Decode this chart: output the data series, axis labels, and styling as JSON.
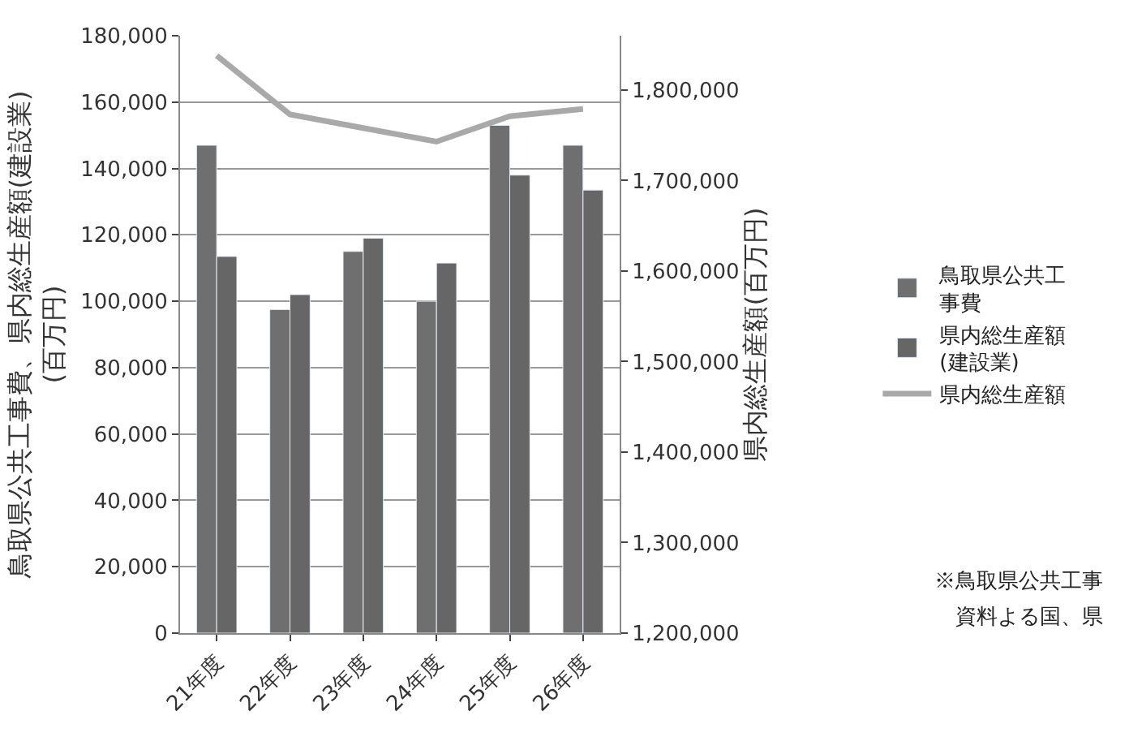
{
  "chart_data": {
    "type": "bar",
    "categories": [
      "21年度",
      "22年度",
      "23年度",
      "24年度",
      "25年度",
      "26年度"
    ],
    "ylabel": "鳥取県公共工事費、県内総生産額(建設業)\n(百万円)",
    "y2label": "県内総生産額(百万円)",
    "series": [
      {
        "name": "鳥取県公共工事費",
        "color": "#6f6f6f",
        "values": [
          147000,
          97500,
          115000,
          100000,
          153000,
          147000
        ]
      },
      {
        "name": "県内総生産額(建設業)",
        "color": "#666666",
        "values": [
          113500,
          102000,
          119000,
          111500,
          138000,
          133500
        ]
      },
      {
        "name": "県内総生産額",
        "type": "line",
        "axis": "y2",
        "color": "#a9a9a9",
        "values": [
          1838000,
          1773000,
          1758000,
          1743000,
          1771000,
          1779000
        ]
      }
    ],
    "ylim": [
      0,
      180000
    ],
    "yticks": [
      {
        "value": 0,
        "label": "0"
      },
      {
        "value": 20000,
        "label": "20,000"
      },
      {
        "value": 40000,
        "label": "40,000"
      },
      {
        "value": 60000,
        "label": "60,000"
      },
      {
        "value": 80000,
        "label": "80,000"
      },
      {
        "value": 100000,
        "label": "100,000"
      },
      {
        "value": 120000,
        "label": "120,000"
      },
      {
        "value": 140000,
        "label": "140,000"
      },
      {
        "value": 160000,
        "label": "160,000"
      },
      {
        "value": 180000,
        "label": "180,000"
      }
    ],
    "y2lim": [
      1200000,
      1860000
    ],
    "y2ticks": [
      {
        "value": 1200000,
        "label": "1,200,000"
      },
      {
        "value": 1300000,
        "label": "1,300,000"
      },
      {
        "value": 1400000,
        "label": "1,400,000"
      },
      {
        "value": 1500000,
        "label": "1,500,000"
      },
      {
        "value": 1600000,
        "label": "1,600,000"
      },
      {
        "value": 1700000,
        "label": "1,700,000"
      },
      {
        "value": 1800000,
        "label": "1,800,000"
      }
    ],
    "grid": "y",
    "legend": "right",
    "marker": "none",
    "line_style": "solid",
    "annotations": [
      "※鳥取県公共工事",
      "資料よる国、県"
    ]
  }
}
